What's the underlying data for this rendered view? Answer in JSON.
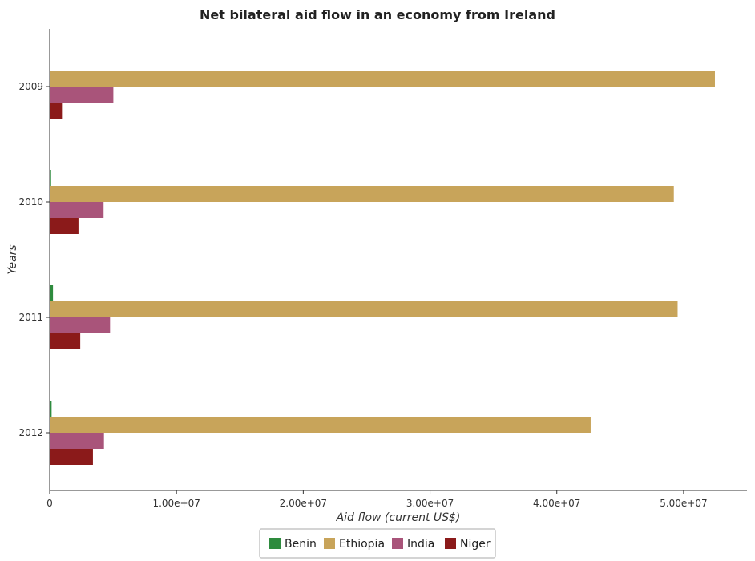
{
  "chart_data": {
    "type": "bar",
    "orientation": "horizontal",
    "title": "Net bilateral aid flow in an economy from Ireland",
    "xlabel": "Aid flow (current US$)",
    "ylabel": "Years",
    "categories": [
      "2009",
      "2010",
      "2011",
      "2012"
    ],
    "xlim": [
      0,
      55000000
    ],
    "x_ticks": [
      0,
      10000000,
      20000000,
      30000000,
      40000000,
      50000000
    ],
    "x_tick_labels": [
      "0",
      "1.00e+07",
      "2.00e+07",
      "3.00e+07",
      "4.00e+07",
      "5.00e+07"
    ],
    "grid": false,
    "legend_position": "bottom-center",
    "series": [
      {
        "name": "Benin",
        "color": "#2e8b3e",
        "values": [
          40000,
          110000,
          260000,
          150000
        ]
      },
      {
        "name": "Ethiopia",
        "color": "#c8a45a",
        "values": [
          52470000,
          49230000,
          49530000,
          42670000
        ]
      },
      {
        "name": "India",
        "color": "#a9547a",
        "values": [
          5020000,
          4250000,
          4760000,
          4280000
        ]
      },
      {
        "name": "Niger",
        "color": "#8b1a1a",
        "values": [
          970000,
          2270000,
          2410000,
          3410000
        ]
      }
    ]
  }
}
